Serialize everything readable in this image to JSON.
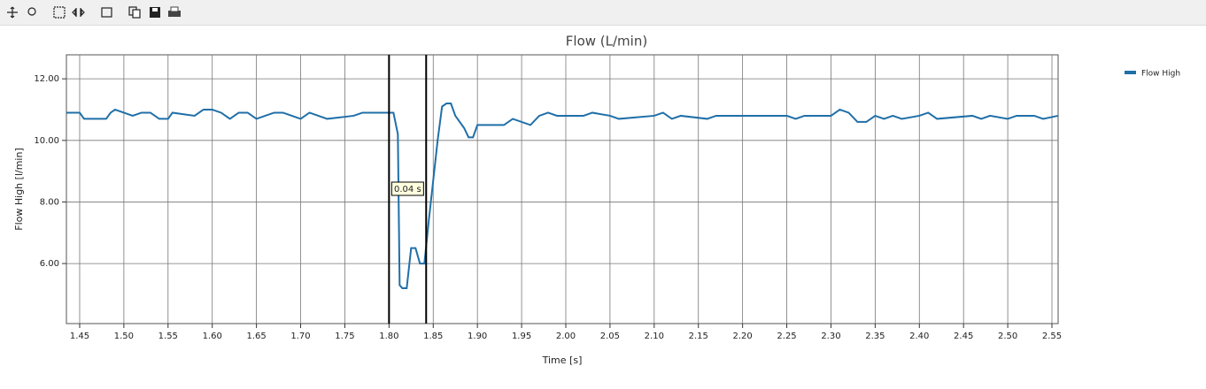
{
  "chart_data": {
    "type": "line",
    "title": "Flow (L/min)",
    "xlabel": "Time [s]",
    "ylabel": "Flow High [l/min]",
    "xlim": [
      1.435,
      2.557
    ],
    "ylim": [
      4.05,
      12.78
    ],
    "xticks": [
      1.45,
      {
        "value": 1.5,
        "label": "1.50"
      },
      1.55,
      {
        "value": 1.6,
        "label": "1.60"
      },
      1.65,
      {
        "value": 1.7,
        "label": "1.70"
      },
      1.75,
      {
        "value": 1.8,
        "label": "1.80"
      },
      1.85,
      {
        "value": 1.9,
        "label": "1.90"
      },
      1.95,
      {
        "value": 2.0,
        "label": "2.00"
      },
      2.05,
      {
        "value": 2.1,
        "label": "2.10"
      },
      2.15,
      {
        "value": 2.2,
        "label": "2.20"
      },
      2.25,
      {
        "value": 2.3,
        "label": "2.30"
      },
      2.35,
      {
        "value": 2.4,
        "label": "2.40"
      },
      2.45,
      {
        "value": 2.5,
        "label": "2.50"
      },
      2.55
    ],
    "yticks": [
      {
        "value": 6,
        "label": "6.00"
      },
      {
        "value": 8,
        "label": "8.00"
      },
      {
        "value": 10,
        "label": "10.00"
      },
      {
        "value": 12,
        "label": "12.00"
      }
    ],
    "grid": true,
    "legend": "right",
    "x": [
      1.435,
      1.45,
      1.455,
      1.48,
      1.485,
      1.49,
      1.5,
      1.51,
      1.52,
      1.53,
      1.54,
      1.55,
      1.555,
      1.58,
      1.59,
      1.6,
      1.61,
      1.62,
      1.63,
      1.64,
      1.65,
      1.67,
      1.68,
      1.69,
      1.7,
      1.71,
      1.72,
      1.73,
      1.76,
      1.77,
      1.78,
      1.8,
      1.805,
      1.81,
      1.812,
      1.815,
      1.82,
      1.825,
      1.83,
      1.835,
      1.84,
      1.845,
      1.85,
      1.855,
      1.86,
      1.865,
      1.87,
      1.875,
      1.885,
      1.89,
      1.895,
      1.9,
      1.93,
      1.94,
      1.96,
      1.97,
      1.98,
      1.99,
      2.02,
      2.03,
      2.05,
      2.06,
      2.1,
      2.11,
      2.12,
      2.13,
      2.16,
      2.17,
      2.25,
      2.26,
      2.27,
      2.28,
      2.3,
      2.31,
      2.32,
      2.33,
      2.34,
      2.35,
      2.36,
      2.37,
      2.38,
      2.4,
      2.41,
      2.42,
      2.46,
      2.47,
      2.48,
      2.5,
      2.51,
      2.53,
      2.54,
      2.557
    ],
    "series": [
      {
        "name": "Flow High",
        "color": "#1f6fa8",
        "values": [
          10.9,
          10.9,
          10.7,
          10.7,
          10.9,
          11.0,
          10.9,
          10.8,
          10.9,
          10.9,
          10.7,
          10.7,
          10.9,
          10.8,
          11.0,
          11.0,
          10.9,
          10.7,
          10.9,
          10.9,
          10.7,
          10.9,
          10.9,
          10.8,
          10.7,
          10.9,
          10.8,
          10.7,
          10.8,
          10.9,
          10.9,
          10.9,
          10.9,
          10.2,
          5.3,
          5.2,
          5.2,
          6.5,
          6.5,
          6.0,
          6.0,
          7.4,
          8.7,
          10.0,
          11.1,
          11.2,
          11.2,
          10.8,
          10.4,
          10.1,
          10.1,
          10.5,
          10.5,
          10.7,
          10.5,
          10.8,
          10.9,
          10.8,
          10.8,
          10.9,
          10.8,
          10.7,
          10.8,
          10.9,
          10.7,
          10.8,
          10.7,
          10.8,
          10.8,
          10.7,
          10.8,
          10.8,
          10.8,
          11.0,
          10.9,
          10.6,
          10.6,
          10.8,
          10.7,
          10.8,
          10.7,
          10.8,
          10.9,
          10.7,
          10.8,
          10.7,
          10.8,
          10.7,
          10.8,
          10.8,
          10.7,
          10.8
        ]
      }
    ],
    "cursors": [
      1.8,
      1.842
    ],
    "annotation": "0.04 s"
  }
}
